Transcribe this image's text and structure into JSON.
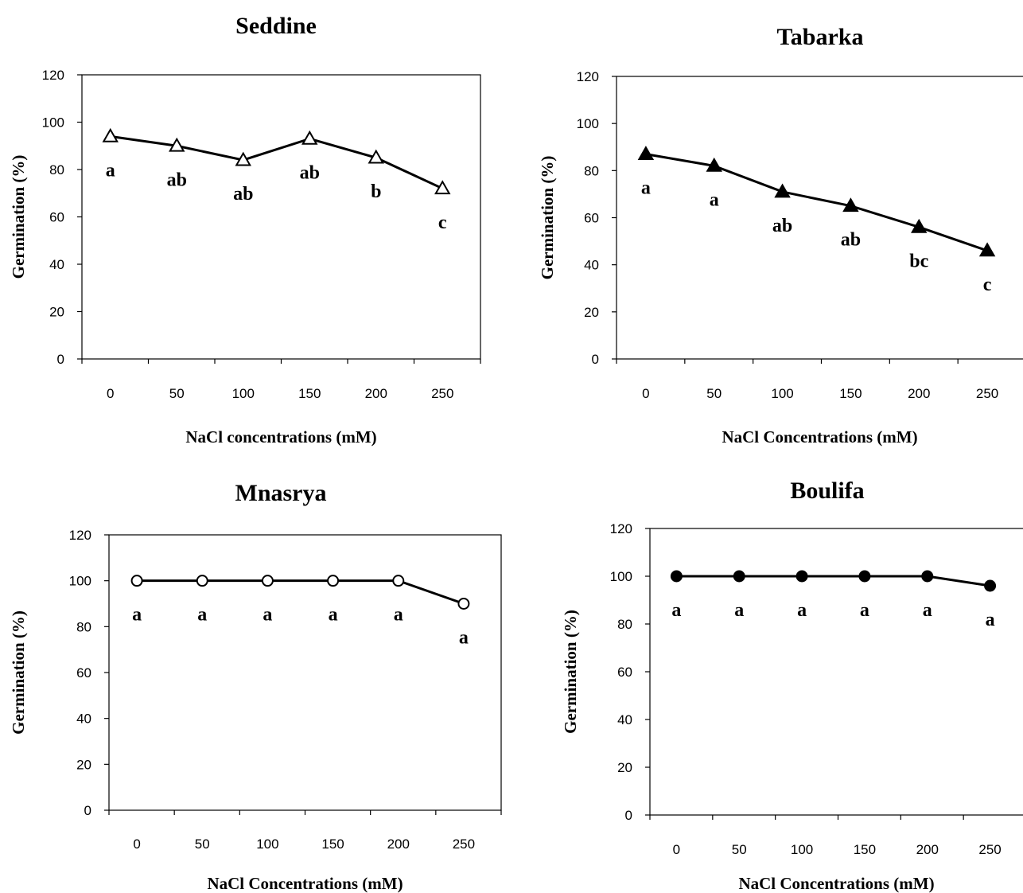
{
  "chart_data": [
    {
      "type": "line",
      "title": "Seddine",
      "xlabel": "NaCl concentrations (mM)",
      "ylabel": "Germination (%)",
      "categories": [
        "0",
        "50",
        "100",
        "150",
        "200",
        "250"
      ],
      "values": [
        94,
        90,
        84,
        93,
        85,
        72
      ],
      "letters": [
        "a",
        "ab",
        "ab",
        "ab",
        "b",
        "c"
      ],
      "ylim": [
        0,
        120
      ],
      "yticks": [
        "0",
        "20",
        "40",
        "60",
        "80",
        "100",
        "120"
      ],
      "marker": "open-triangle"
    },
    {
      "type": "line",
      "title": "Tabarka",
      "xlabel": "NaCl Concentrations (mM)",
      "ylabel": "Germination (%)",
      "categories": [
        "0",
        "50",
        "100",
        "150",
        "200",
        "250"
      ],
      "values": [
        87,
        82,
        71,
        65,
        56,
        46
      ],
      "letters": [
        "a",
        "a",
        "ab",
        "ab",
        "bc",
        "c"
      ],
      "ylim": [
        0,
        120
      ],
      "yticks": [
        "0",
        "20",
        "40",
        "60",
        "80",
        "100",
        "120"
      ],
      "marker": "filled-triangle"
    },
    {
      "type": "line",
      "title": "Mnasrya",
      "xlabel": "NaCl Concentrations (mM)",
      "ylabel": "Germination (%)",
      "categories": [
        "0",
        "50",
        "100",
        "150",
        "200",
        "250"
      ],
      "values": [
        100,
        100,
        100,
        100,
        100,
        90
      ],
      "letters": [
        "a",
        "a",
        "a",
        "a",
        "a",
        "a"
      ],
      "ylim": [
        0,
        120
      ],
      "yticks": [
        "0",
        "20",
        "40",
        "60",
        "80",
        "100",
        "120"
      ],
      "marker": "open-circle"
    },
    {
      "type": "line",
      "title": "Boulifa",
      "xlabel": "NaCl Concentrations (mM)",
      "ylabel": "Germination (%)",
      "categories": [
        "0",
        "50",
        "100",
        "150",
        "200",
        "250"
      ],
      "values": [
        100,
        100,
        100,
        100,
        100,
        96
      ],
      "letters": [
        "a",
        "a",
        "a",
        "a",
        "a",
        "a"
      ],
      "ylim": [
        0,
        120
      ],
      "yticks": [
        "0",
        "20",
        "40",
        "60",
        "80",
        "100",
        "120"
      ],
      "marker": "filled-circle"
    }
  ]
}
